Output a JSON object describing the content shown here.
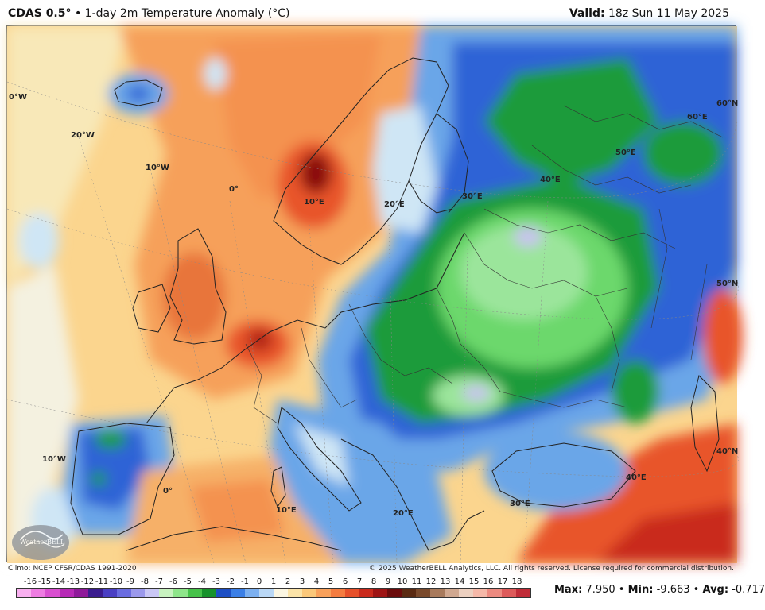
{
  "header": {
    "model": "CDAS 0.5°",
    "separator": "•",
    "product": "1-day 2m Temperature Anomaly (°C)",
    "valid_label": "Valid:",
    "valid_time": "18z Sun 11 May 2025"
  },
  "map": {
    "lon_labels": [
      "0°W",
      "20°W",
      "10°W",
      "0°",
      "10°E",
      "20°E",
      "30°E",
      "40°E",
      "50°E",
      "60°E",
      "10°W",
      "0°",
      "10°E",
      "20°E",
      "30°E",
      "40°E"
    ],
    "lat_labels": [
      "60°N",
      "50°N",
      "40°N"
    ],
    "logo_text": "WeatherBELL",
    "colors": {
      "strong_warm": "#8b1010",
      "warm": "#e8542a",
      "mild_warm": "#f6a05a",
      "slight_warm": "#fbd58e",
      "neutral": "#f4f1e0",
      "slight_cool": "#cfe6f5",
      "cool": "#6aa6e8",
      "cold": "#2f63d6",
      "very_cold": "#1f9b3a",
      "extreme_cold": "#9be59b",
      "lavender": "#c9c2f0"
    }
  },
  "footer": {
    "climo": "Climo: NCEP CFSR/CDAS 1991-2020",
    "copyright": "© 2025 WeatherBELL Analytics, LLC. All rights reserved. License required for commercial distribution."
  },
  "colorbar": {
    "labels": [
      "-16",
      "-15",
      "-14",
      "-13",
      "-12",
      "-11",
      "-10",
      "-9",
      "-8",
      "-7",
      "-6",
      "-5",
      "-4",
      "-3",
      "-2",
      "-1",
      "0",
      "1",
      "2",
      "3",
      "4",
      "5",
      "6",
      "7",
      "8",
      "9",
      "10",
      "11",
      "12",
      "13",
      "14",
      "15",
      "16",
      "17",
      "18"
    ],
    "colors": [
      "#f9b0f0",
      "#ee7ce2",
      "#d94fd0",
      "#b72ab6",
      "#8f1a9a",
      "#3b1d8f",
      "#4a3fc4",
      "#6a6ce0",
      "#9b99ec",
      "#c9c7f5",
      "#c8f2c0",
      "#8ee58a",
      "#46c24a",
      "#17922c",
      "#1d4fc4",
      "#3b7fe6",
      "#7cb0f0",
      "#bad8f6",
      "#fbf6e2",
      "#fbe3a8",
      "#fbc87a",
      "#f9a15b",
      "#f47c40",
      "#e6502a",
      "#c92a1c",
      "#9e1414",
      "#6b0c0c",
      "#5a2a12",
      "#7a4a2c",
      "#a87a5c",
      "#d0a890",
      "#ecd0c0",
      "#f5b8a8",
      "#ec8a80",
      "#dd5a5a",
      "#c02c38"
    ]
  },
  "stats": {
    "max_label": "Max:",
    "max": "7.950",
    "min_label": "Min:",
    "min": "-9.663",
    "avg_label": "Avg:",
    "avg": "-0.717",
    "sep": "•"
  }
}
